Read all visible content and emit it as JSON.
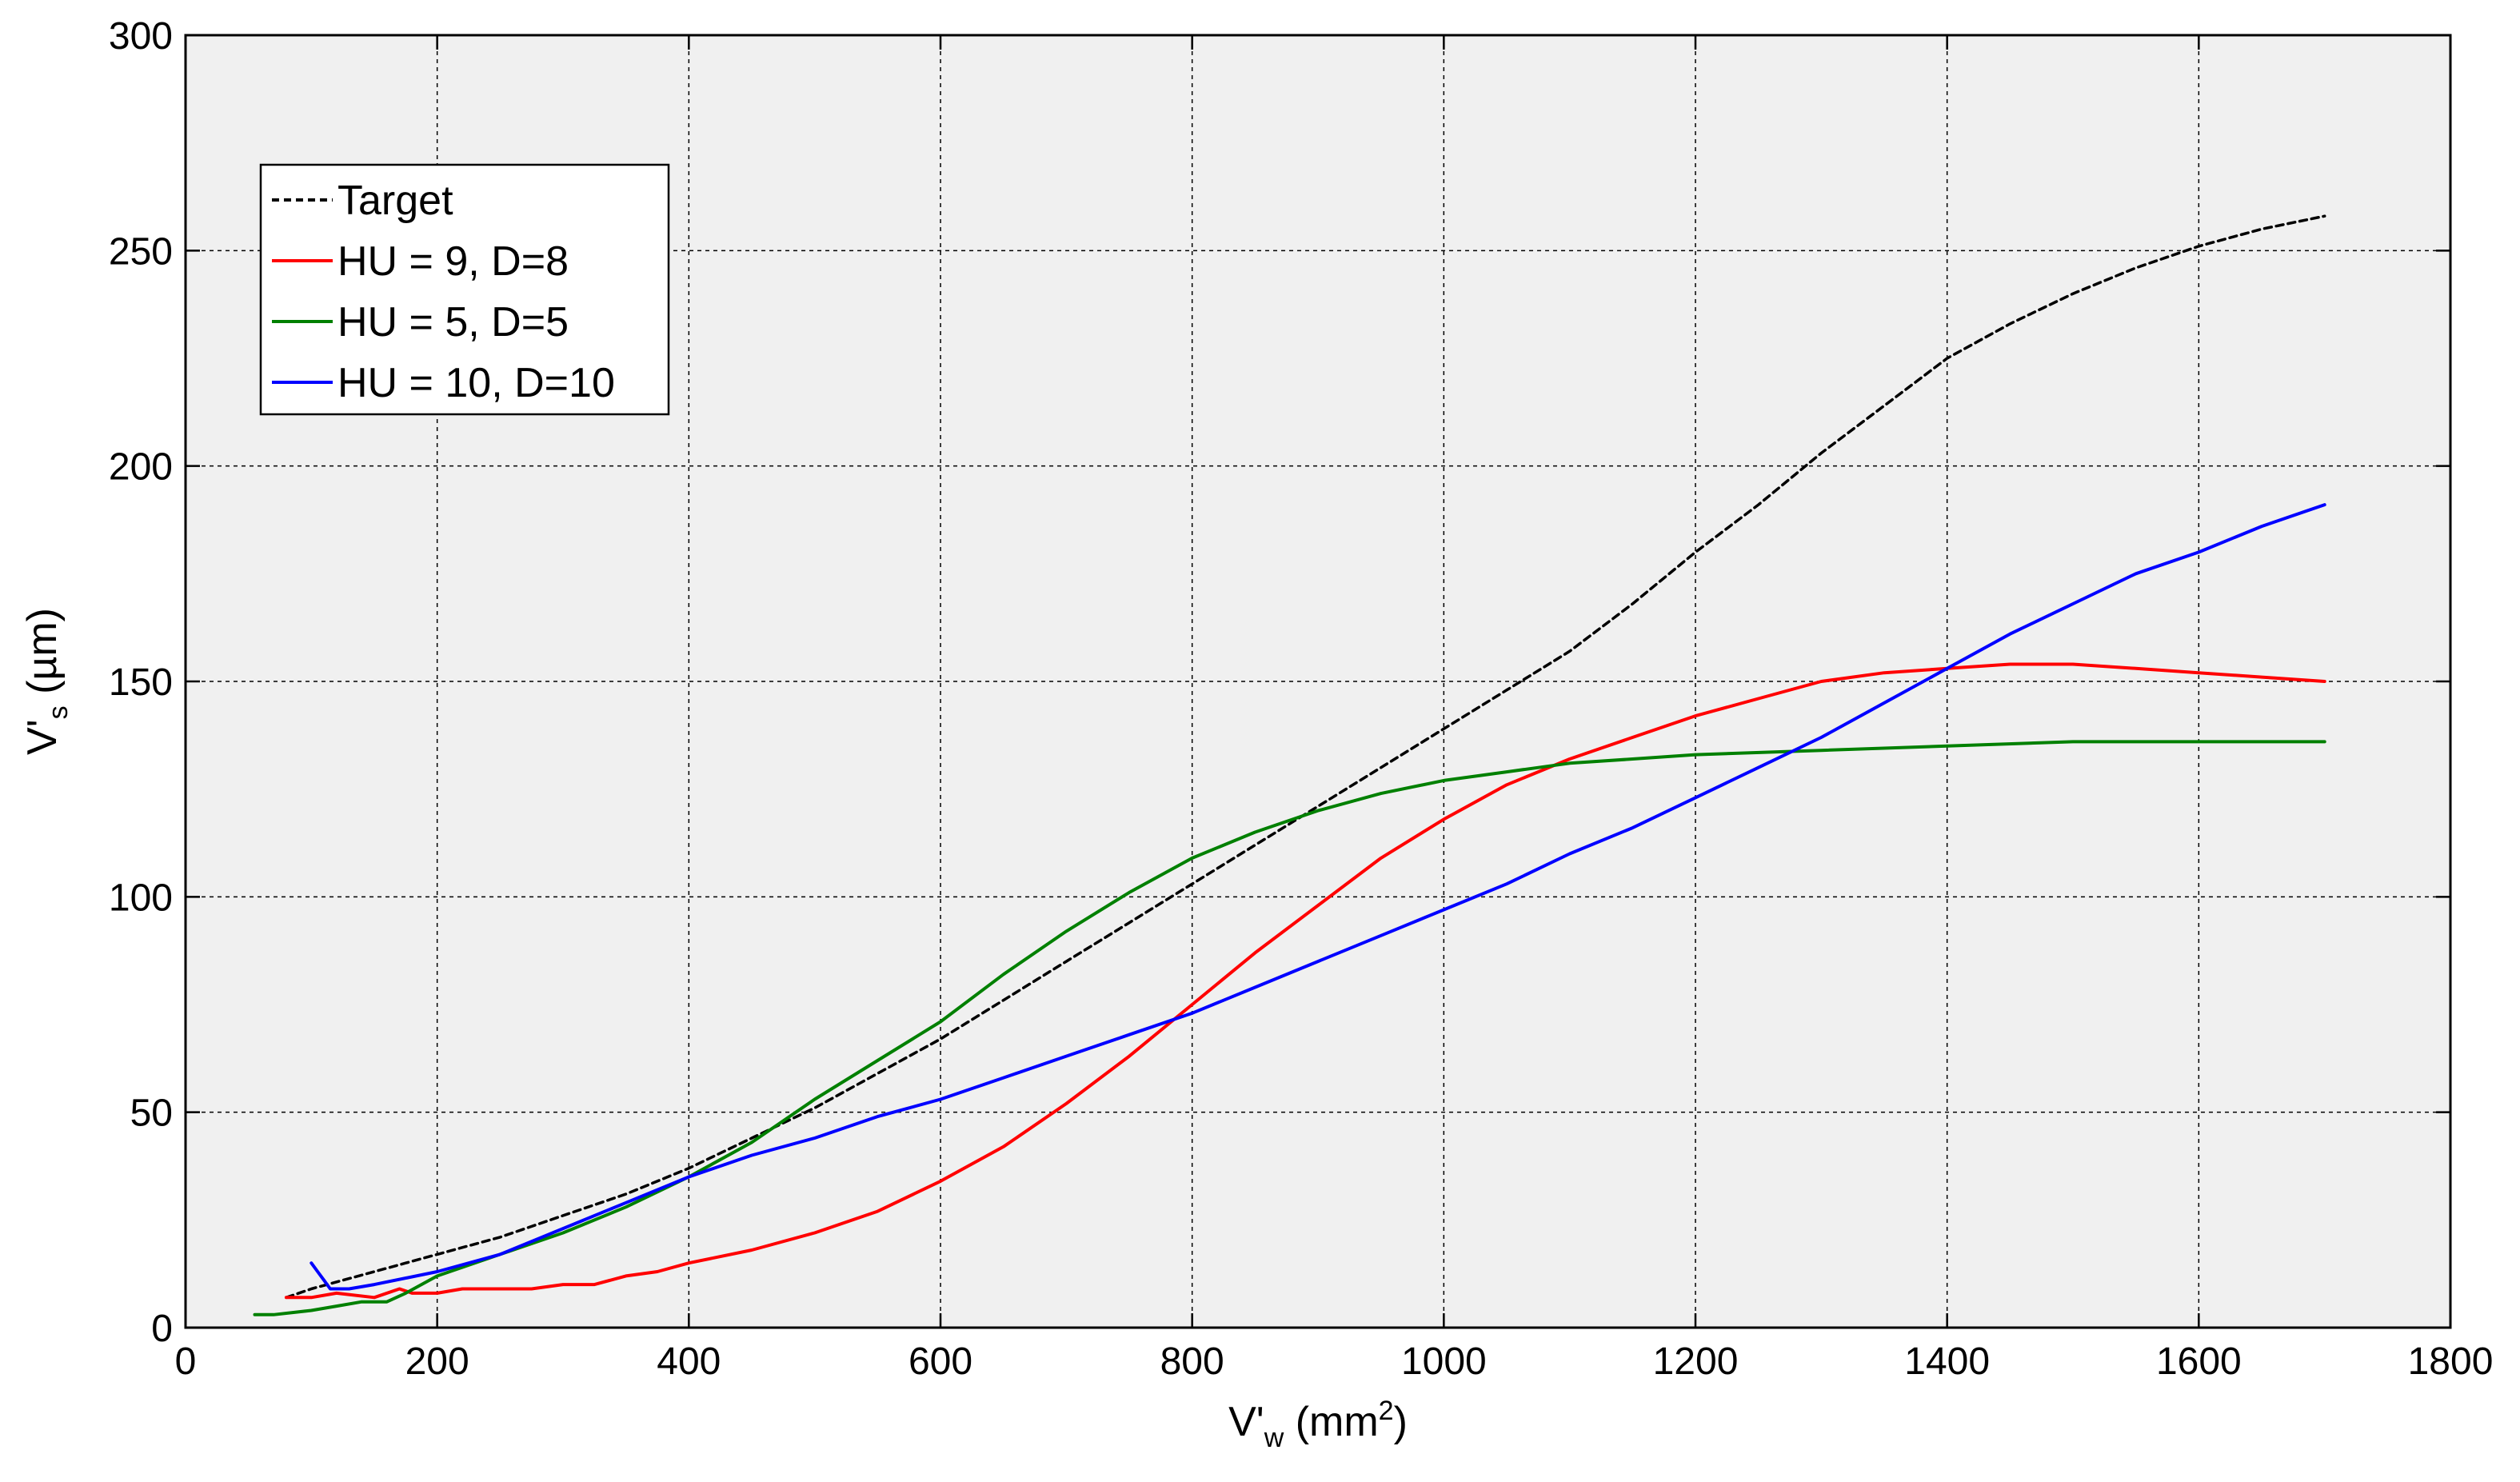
{
  "chart_data": {
    "type": "line",
    "title": "",
    "xlim": [
      0,
      1800
    ],
    "ylim": [
      0,
      300
    ],
    "xticks": [
      0,
      200,
      400,
      600,
      800,
      1000,
      1200,
      1400,
      1600,
      1800
    ],
    "yticks": [
      0,
      50,
      100,
      150,
      200,
      250,
      300
    ],
    "xtick_labels": [
      "0",
      "200",
      "400",
      "600",
      "800",
      "1000",
      "1200",
      "1400",
      "1600",
      "1800"
    ],
    "ytick_labels": [
      "0",
      "50",
      "100",
      "150",
      "200",
      "250",
      "300"
    ],
    "xlabel": {
      "main": "V'",
      "sub": "w",
      "unit_pre": " (mm",
      "unit_sup": "2",
      "unit_post": ")"
    },
    "ylabel": {
      "main": "V'",
      "sub": "s",
      "unit": " (µm)"
    },
    "grid": true,
    "legend_position": "top-left",
    "series": [
      {
        "name": "Target",
        "color": "#000000",
        "style": "dashed",
        "x": [
          80,
          100,
          150,
          200,
          250,
          300,
          350,
          400,
          450,
          500,
          550,
          600,
          650,
          700,
          750,
          800,
          850,
          900,
          950,
          1000,
          1050,
          1100,
          1150,
          1200,
          1250,
          1300,
          1350,
          1400,
          1450,
          1500,
          1550,
          1600,
          1650,
          1700
        ],
        "y": [
          7,
          9,
          13,
          17,
          21,
          26,
          31,
          37,
          44,
          51,
          59,
          67,
          76,
          85,
          94,
          103,
          112,
          121,
          130,
          139,
          148,
          157,
          168,
          180,
          191,
          203,
          214,
          225,
          233,
          240,
          246,
          251,
          255,
          258
        ]
      },
      {
        "name": "HU = 9, D=8",
        "color": "#ff0000",
        "style": "solid",
        "x": [
          80,
          100,
          120,
          150,
          170,
          180,
          200,
          220,
          250,
          275,
          300,
          325,
          350,
          375,
          400,
          450,
          500,
          550,
          600,
          650,
          700,
          750,
          800,
          850,
          900,
          950,
          1000,
          1050,
          1100,
          1150,
          1200,
          1250,
          1300,
          1350,
          1400,
          1450,
          1500,
          1550,
          1600,
          1650,
          1700
        ],
        "y": [
          7,
          7,
          8,
          7,
          9,
          8,
          8,
          9,
          9,
          9,
          10,
          10,
          12,
          13,
          15,
          18,
          22,
          27,
          34,
          42,
          52,
          63,
          75,
          87,
          98,
          109,
          118,
          126,
          132,
          137,
          142,
          146,
          150,
          152,
          153,
          154,
          154,
          153,
          152,
          151,
          150
        ]
      },
      {
        "name": "HU = 5,   D=5",
        "color": "#008000",
        "style": "solid",
        "x": [
          55,
          70,
          100,
          120,
          140,
          150,
          160,
          175,
          200,
          250,
          300,
          350,
          400,
          450,
          500,
          550,
          600,
          650,
          700,
          750,
          800,
          850,
          900,
          950,
          1000,
          1050,
          1100,
          1150,
          1200,
          1300,
          1400,
          1500,
          1600,
          1700
        ],
        "y": [
          3,
          3,
          4,
          5,
          6,
          6,
          6,
          8,
          12,
          17,
          22,
          28,
          35,
          43,
          53,
          62,
          71,
          82,
          92,
          101,
          109,
          115,
          120,
          124,
          127,
          129,
          131,
          132,
          133,
          134,
          135,
          136,
          136,
          136
        ]
      },
      {
        "name": "HU = 10, D=10",
        "color": "#0000ff",
        "style": "solid",
        "x": [
          100,
          105,
          110,
          115,
          130,
          150,
          200,
          250,
          300,
          350,
          400,
          450,
          500,
          550,
          600,
          650,
          700,
          750,
          800,
          850,
          900,
          950,
          1000,
          1050,
          1100,
          1150,
          1200,
          1250,
          1300,
          1350,
          1400,
          1450,
          1500,
          1550,
          1600,
          1650,
          1700
        ],
        "y": [
          15,
          13,
          11,
          9,
          9,
          10,
          13,
          17,
          23,
          29,
          35,
          40,
          44,
          49,
          53,
          58,
          63,
          68,
          73,
          79,
          85,
          91,
          97,
          103,
          110,
          116,
          123,
          130,
          137,
          145,
          153,
          161,
          168,
          175,
          180,
          186,
          191
        ]
      }
    ]
  }
}
